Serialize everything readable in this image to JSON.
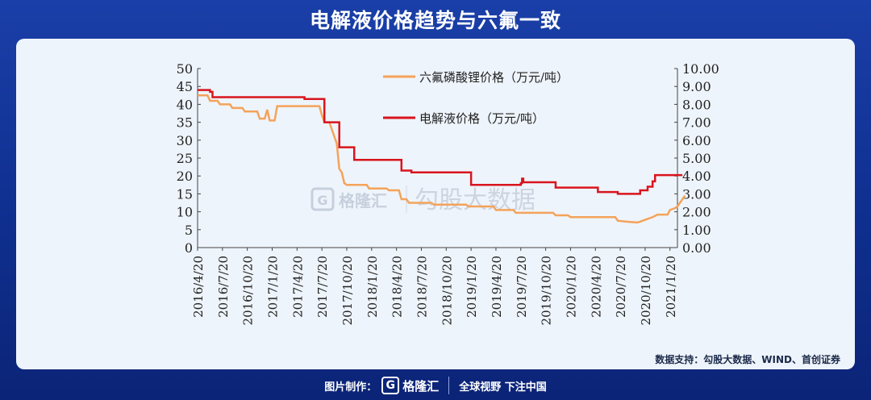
{
  "header": {
    "title": "电解液价格趋势与六氟一致"
  },
  "source_note": "数据支持：勾股大数据、WIND、首创证券",
  "footer": {
    "made_by": "图片制作：",
    "logo_text": "格隆汇",
    "slogan": "全球视野 下注中国"
  },
  "watermark": {
    "logo_text": "格隆汇",
    "text": "勾股大数据"
  },
  "colors": {
    "lipf6": "#f4a35a",
    "electrolyte": "#d9141e"
  },
  "chart_data": {
    "type": "line",
    "x_tick_labels": [
      "2016/4/20",
      "2016/7/20",
      "2016/10/20",
      "2017/1/20",
      "2017/4/20",
      "2017/7/20",
      "2017/10/20",
      "2018/1/20",
      "2018/4/20",
      "2018/7/20",
      "2018/10/20",
      "2019/1/20",
      "2019/4/20",
      "2019/7/20",
      "2019/10/20",
      "2020/1/20",
      "2020/4/20",
      "2020/7/20",
      "2020/10/20",
      "2021/1/20"
    ],
    "x_range": [
      0,
      19.3
    ],
    "y_left": {
      "range": [
        0,
        50
      ],
      "ticks": [
        "0",
        "5",
        "10",
        "15",
        "20",
        "25",
        "30",
        "35",
        "40",
        "45",
        "50"
      ]
    },
    "y_right": {
      "range": [
        0,
        10
      ],
      "ticks": [
        "0.00",
        "1.00",
        "2.00",
        "3.00",
        "4.00",
        "5.00",
        "6.00",
        "7.00",
        "8.00",
        "9.00",
        "10.00"
      ]
    },
    "legend": "top-center",
    "series": [
      {
        "name": "六氟磷酸锂价格（万元/吨）",
        "axis": "left",
        "step": false,
        "points": [
          [
            0,
            42.5
          ],
          [
            0.4,
            42.5
          ],
          [
            0.5,
            41
          ],
          [
            0.8,
            41
          ],
          [
            0.9,
            40
          ],
          [
            1.3,
            40
          ],
          [
            1.4,
            39
          ],
          [
            1.8,
            39
          ],
          [
            1.9,
            38
          ],
          [
            2.4,
            38
          ],
          [
            2.5,
            36
          ],
          [
            2.7,
            36
          ],
          [
            2.8,
            38.5
          ],
          [
            2.9,
            35.5
          ],
          [
            3.1,
            35.5
          ],
          [
            3.2,
            39.5
          ],
          [
            3.6,
            39.5
          ],
          [
            3.7,
            39.5
          ],
          [
            4.3,
            39.5
          ],
          [
            4.4,
            39.5
          ],
          [
            4.9,
            39.5
          ],
          [
            5.0,
            37
          ],
          [
            5.1,
            35
          ],
          [
            5.3,
            35
          ],
          [
            5.4,
            33
          ],
          [
            5.6,
            29
          ],
          [
            5.7,
            22
          ],
          [
            5.8,
            21
          ],
          [
            5.9,
            18
          ],
          [
            6.0,
            17.5
          ],
          [
            6.8,
            17.5
          ],
          [
            6.9,
            16.5
          ],
          [
            7.6,
            16.5
          ],
          [
            7.7,
            16
          ],
          [
            8.1,
            16
          ],
          [
            8.2,
            13.5
          ],
          [
            8.4,
            13.5
          ],
          [
            8.5,
            12.5
          ],
          [
            9.4,
            12.5
          ],
          [
            9.5,
            12
          ],
          [
            10.8,
            12
          ],
          [
            10.9,
            11.5
          ],
          [
            11.9,
            11.5
          ],
          [
            12.0,
            10.5
          ],
          [
            12.7,
            10.5
          ],
          [
            12.8,
            9.7
          ],
          [
            14.3,
            9.7
          ],
          [
            14.4,
            9
          ],
          [
            14.9,
            9
          ],
          [
            15.0,
            8.5
          ],
          [
            16.8,
            8.5
          ],
          [
            16.9,
            7.5
          ],
          [
            17.3,
            7.2
          ],
          [
            17.7,
            7
          ],
          [
            17.9,
            7.5
          ],
          [
            18.1,
            8
          ],
          [
            18.3,
            8.5
          ],
          [
            18.5,
            9.2
          ],
          [
            18.9,
            9.2
          ],
          [
            19.0,
            10.5
          ],
          [
            19.2,
            11
          ],
          [
            19.3,
            11.5
          ],
          [
            19.4,
            12.5
          ],
          [
            19.5,
            13.5
          ],
          [
            19.6,
            14.5
          ]
        ]
      },
      {
        "name": "电解液价格（万元/吨）",
        "axis": "right",
        "step": true,
        "points": [
          [
            0,
            8.8
          ],
          [
            0.5,
            8.7
          ],
          [
            0.6,
            8.4
          ],
          [
            4.3,
            8.3
          ],
          [
            5.0,
            8.3
          ],
          [
            5.1,
            7.0
          ],
          [
            5.6,
            7.0
          ],
          [
            5.7,
            5.6
          ],
          [
            6.2,
            5.6
          ],
          [
            6.3,
            4.9
          ],
          [
            7.0,
            4.9
          ],
          [
            8.1,
            4.9
          ],
          [
            8.2,
            4.3
          ],
          [
            8.6,
            4.2
          ],
          [
            10.9,
            4.2
          ],
          [
            11.0,
            3.5
          ],
          [
            12.7,
            3.5
          ],
          [
            13.0,
            3.6
          ],
          [
            13.05,
            3.85
          ],
          [
            13.1,
            3.65
          ],
          [
            14.3,
            3.65
          ],
          [
            14.4,
            3.35
          ],
          [
            16.0,
            3.35
          ],
          [
            16.1,
            3.1
          ],
          [
            16.8,
            3.1
          ],
          [
            16.9,
            3.0
          ],
          [
            17.7,
            3.0
          ],
          [
            17.8,
            3.2
          ],
          [
            18.1,
            3.4
          ],
          [
            18.3,
            3.7
          ],
          [
            18.4,
            4.05
          ],
          [
            19.5,
            4.05
          ]
        ]
      }
    ]
  }
}
